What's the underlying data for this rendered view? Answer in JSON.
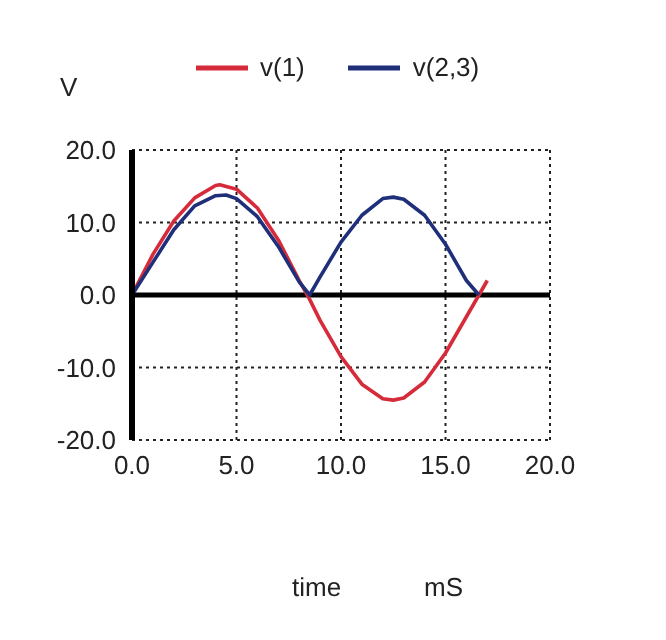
{
  "chart_data": {
    "type": "line",
    "ylabel": "V",
    "xlabel": "time",
    "annotations": [
      "mS"
    ],
    "xlim": [
      0,
      20
    ],
    "ylim": [
      -20,
      20
    ],
    "xticks": [
      {
        "value": 0,
        "label": "0.0"
      },
      {
        "value": 5,
        "label": "5.0"
      },
      {
        "value": 10,
        "label": "10.0"
      },
      {
        "value": 15,
        "label": "15.0"
      },
      {
        "value": 20,
        "label": "20.0"
      }
    ],
    "yticks": [
      {
        "value": -20,
        "label": "-20.0"
      },
      {
        "value": -10,
        "label": "-10.0"
      },
      {
        "value": 0,
        "label": "0.0"
      },
      {
        "value": 10,
        "label": "10.0"
      },
      {
        "value": 20,
        "label": "20.0"
      }
    ],
    "grid": true,
    "legend": "top",
    "marker": "none",
    "line_style": "solid",
    "ref_lines": [
      {
        "axis": "y",
        "value": 0,
        "color": "#000000"
      }
    ],
    "series": [
      {
        "name": "v(1)",
        "color": "#d62b3a",
        "x": [
          0,
          1,
          2,
          3,
          4,
          4.2,
          5,
          6,
          7,
          8,
          8.5,
          9,
          10,
          11,
          12,
          12.5,
          13,
          14,
          15,
          16,
          17
        ],
        "values": [
          0,
          5.6,
          10.2,
          13.4,
          15.1,
          15.2,
          14.6,
          12,
          7.6,
          2,
          -0.6,
          -3.5,
          -8.5,
          -12.3,
          -14.3,
          -14.5,
          -14.2,
          -12,
          -8,
          -3,
          2
        ]
      },
      {
        "name": "v(2,3)",
        "color": "#1f2f7a",
        "x": [
          0,
          1,
          2,
          3,
          4,
          4.5,
          5,
          6,
          7,
          8,
          8.5,
          9,
          10,
          11,
          12,
          12.5,
          13,
          14,
          15,
          16,
          16.6
        ],
        "values": [
          0,
          4.5,
          9,
          12.3,
          13.7,
          13.8,
          13.3,
          10.8,
          6.7,
          1.8,
          0,
          2.5,
          7.3,
          11,
          13.3,
          13.5,
          13.2,
          11,
          7,
          2,
          0
        ]
      }
    ]
  }
}
